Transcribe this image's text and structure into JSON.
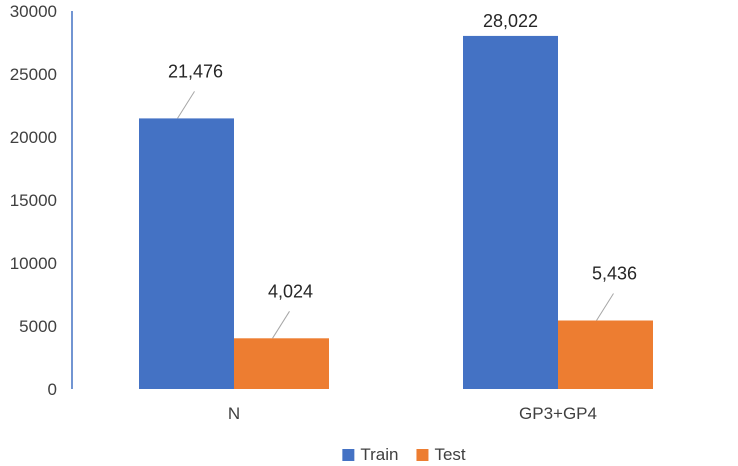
{
  "chart_data": {
    "type": "bar",
    "categories": [
      "N",
      "GP3+GP4"
    ],
    "series": [
      {
        "name": "Train",
        "color": "#4472C4",
        "values": [
          21476,
          28022
        ],
        "labels": [
          "21,476",
          "28,022"
        ]
      },
      {
        "name": "Test",
        "color": "#ED7D31",
        "values": [
          4024,
          5436
        ],
        "labels": [
          "4,024",
          "5,436"
        ]
      }
    ],
    "y_ticks": [
      "0",
      "5000",
      "10000",
      "15000",
      "20000",
      "25000",
      "30000"
    ],
    "ylim": [
      0,
      30000
    ],
    "grid": false,
    "legend": "bottom"
  }
}
